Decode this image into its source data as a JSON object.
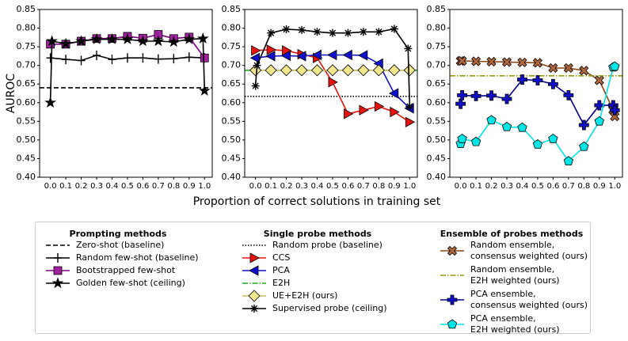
{
  "chart_data": [
    {
      "type": "line",
      "y_label": "AUROC",
      "legend_title": "Prompting methods",
      "xlim": [
        -0.07,
        1.05
      ],
      "ylim": [
        0.4,
        0.85
      ],
      "xticks": [
        {
          "value": 0,
          "label": "0.0"
        },
        {
          "value": 0.1,
          "label": "0.1"
        },
        {
          "value": 0.2,
          "label": "0.2"
        },
        {
          "value": 0.3,
          "label": "0.3"
        },
        {
          "value": 0.4,
          "label": "0.4"
        },
        {
          "value": 0.5,
          "label": "0.5"
        },
        {
          "value": 0.6,
          "label": "0.6"
        },
        {
          "value": 0.7,
          "label": "0.7"
        },
        {
          "value": 0.8,
          "label": "0.8"
        },
        {
          "value": 0.9,
          "label": "0.9"
        },
        {
          "value": 1,
          "label": "1.0"
        }
      ],
      "yticks": [
        {
          "value": 0.4,
          "label": "0.40"
        },
        0.45,
        {
          "value": 0.5,
          "label": "0.50"
        },
        0.55,
        {
          "value": 0.6,
          "label": "0.60"
        },
        0.65,
        {
          "value": 0.7,
          "label": "0.70"
        },
        0.75,
        {
          "value": 0.8,
          "label": "0.80"
        },
        0.85
      ],
      "series": [
        {
          "name": "Zero-shot (baseline)",
          "color": "#000000",
          "dash": "dashed",
          "value": 0.64
        },
        {
          "name": "Random few-shot (baseline)",
          "color": "#000000",
          "marker": "plus",
          "x": [
            0,
            0.1,
            0.2,
            0.3,
            0.4,
            0.5,
            0.6,
            0.7,
            0.8,
            0.9,
            1
          ],
          "values": [
            0.72,
            0.716,
            0.713,
            0.727,
            0.716,
            0.72,
            0.72,
            0.717,
            0.718,
            0.722,
            0.72
          ]
        },
        {
          "name": "Bootstrapped few-shot",
          "color": "#800080",
          "marker_color": "#a0209f",
          "marker": "square",
          "x": [
            0,
            0.1,
            0.2,
            0.3,
            0.4,
            0.5,
            0.6,
            0.7,
            0.8,
            0.9,
            1
          ],
          "values": [
            0.757,
            0.757,
            0.765,
            0.772,
            0.772,
            0.778,
            0.773,
            0.783,
            0.772,
            0.776,
            0.72
          ]
        },
        {
          "name": "Golden few-shot (ceiling)",
          "color": "#000000",
          "marker": "star",
          "x": [
            0,
            0.01,
            0.1,
            0.2,
            0.3,
            0.4,
            0.5,
            0.6,
            0.7,
            0.8,
            0.9,
            0.99,
            1
          ],
          "values": [
            0.6,
            0.765,
            0.758,
            0.765,
            0.77,
            0.77,
            0.77,
            0.765,
            0.765,
            0.763,
            0.77,
            0.772,
            0.632
          ]
        }
      ]
    },
    {
      "type": "line",
      "x_label": "Proportion of correct solutions in training set",
      "legend_title": "Single probe methods",
      "xlim": [
        -0.07,
        1.05
      ],
      "ylim": [
        0.4,
        0.85
      ],
      "xticks": [
        {
          "value": 0,
          "label": "0.0"
        },
        {
          "value": 0.1,
          "label": "0.1"
        },
        {
          "value": 0.2,
          "label": "0.2"
        },
        {
          "value": 0.3,
          "label": "0.3"
        },
        {
          "value": 0.4,
          "label": "0.4"
        },
        {
          "value": 0.5,
          "label": "0.5"
        },
        {
          "value": 0.6,
          "label": "0.6"
        },
        {
          "value": 0.7,
          "label": "0.7"
        },
        {
          "value": 0.8,
          "label": "0.8"
        },
        {
          "value": 0.9,
          "label": "0.9"
        },
        {
          "value": 1,
          "label": "1.0"
        }
      ],
      "yticks": [
        {
          "value": 0.4,
          "label": "0.40"
        },
        0.45,
        {
          "value": 0.5,
          "label": "0.50"
        },
        0.55,
        {
          "value": 0.6,
          "label": "0.60"
        },
        0.65,
        {
          "value": 0.7,
          "label": "0.70"
        },
        0.75,
        {
          "value": 0.8,
          "label": "0.80"
        },
        0.85
      ],
      "series": [
        {
          "name": "Random probe (baseline)",
          "color": "#000000",
          "dash": "dotted",
          "value": 0.617
        },
        {
          "name": "CCS",
          "color": "#e8120c",
          "marker": "tri-right",
          "x": [
            0,
            0.1,
            0.2,
            0.3,
            0.4,
            0.5,
            0.6,
            0.7,
            0.8,
            0.9,
            1
          ],
          "values": [
            0.74,
            0.742,
            0.74,
            0.73,
            0.72,
            0.655,
            0.57,
            0.58,
            0.59,
            0.575,
            0.548
          ]
        },
        {
          "name": "PCA",
          "color": "#1010cc",
          "marker": "tri-left",
          "x": [
            0,
            0.1,
            0.2,
            0.3,
            0.4,
            0.5,
            0.6,
            0.7,
            0.8,
            0.9,
            1
          ],
          "values": [
            0.72,
            0.725,
            0.726,
            0.725,
            0.728,
            0.728,
            0.728,
            0.727,
            0.705,
            0.625,
            0.585
          ]
        },
        {
          "name": "E2H",
          "color": "#22aa22",
          "dash": "dashdot",
          "value": 0.687
        },
        {
          "name": "UE+E2H (ours)",
          "color": "#c8be5a",
          "marker_color": "#f0e68c",
          "marker": "diamond",
          "x": [
            0,
            0.1,
            0.2,
            0.3,
            0.4,
            0.5,
            0.6,
            0.7,
            0.8,
            0.9,
            1
          ],
          "values": [
            0.687,
            0.687,
            0.687,
            0.687,
            0.687,
            0.687,
            0.687,
            0.687,
            0.687,
            0.687,
            0.687
          ]
        },
        {
          "name": "Supervised probe (ceiling)",
          "color": "#000000",
          "marker": "asterisk",
          "x": [
            0,
            0.01,
            0.1,
            0.2,
            0.3,
            0.4,
            0.5,
            0.6,
            0.7,
            0.8,
            0.9,
            0.99,
            1
          ],
          "values": [
            0.645,
            0.7,
            0.787,
            0.797,
            0.795,
            0.79,
            0.787,
            0.787,
            0.79,
            0.79,
            0.798,
            0.745,
            0.59
          ]
        }
      ]
    },
    {
      "type": "line",
      "legend_title": "Ensemble of probes methods",
      "xlim": [
        -0.07,
        1.05
      ],
      "ylim": [
        0.4,
        0.85
      ],
      "xticks": [
        {
          "value": 0,
          "label": "0.0"
        },
        {
          "value": 0.1,
          "label": "0.1"
        },
        {
          "value": 0.2,
          "label": "0.2"
        },
        {
          "value": 0.3,
          "label": "0.3"
        },
        {
          "value": 0.4,
          "label": "0.4"
        },
        {
          "value": 0.5,
          "label": "0.5"
        },
        {
          "value": 0.6,
          "label": "0.6"
        },
        {
          "value": 0.7,
          "label": "0.7"
        },
        {
          "value": 0.8,
          "label": "0.8"
        },
        {
          "value": 0.9,
          "label": "0.9"
        },
        {
          "value": 1,
          "label": "1.0"
        }
      ],
      "yticks": [
        {
          "value": 0.4,
          "label": "0.40"
        },
        0.45,
        {
          "value": 0.5,
          "label": "0.50"
        },
        0.55,
        {
          "value": 0.6,
          "label": "0.60"
        },
        0.65,
        {
          "value": 0.7,
          "label": "0.70"
        },
        0.75,
        {
          "value": 0.8,
          "label": "0.80"
        },
        0.85
      ],
      "series": [
        {
          "name": "Random ensemble,\nconsensus weighted (ours)",
          "color": "#8b4513",
          "marker_color": "#b0683a",
          "marker": "xfill",
          "x": [
            0,
            0.01,
            0.1,
            0.2,
            0.3,
            0.4,
            0.5,
            0.6,
            0.7,
            0.8,
            0.9,
            0.99,
            1
          ],
          "values": [
            0.712,
            0.712,
            0.711,
            0.71,
            0.709,
            0.708,
            0.707,
            0.693,
            0.693,
            0.686,
            0.66,
            0.58,
            0.563
          ]
        },
        {
          "name": "Random ensemble,\nE2H weighted (ours)",
          "color": "#9a9a10",
          "dash": "dashdot",
          "value": 0.672
        },
        {
          "name": "PCA ensemble,\nconsensus weighted (ours)",
          "color": "#00008b",
          "marker_color": "#1010cc",
          "marker": "pfill",
          "x": [
            0,
            0.01,
            0.1,
            0.2,
            0.3,
            0.4,
            0.5,
            0.6,
            0.7,
            0.8,
            0.9,
            0.99,
            1
          ],
          "values": [
            0.597,
            0.62,
            0.618,
            0.619,
            0.61,
            0.662,
            0.66,
            0.65,
            0.62,
            0.54,
            0.593,
            0.593,
            0.58
          ]
        },
        {
          "name": "PCA ensemble,\nE2H weighted (ours)",
          "color": "#00e5e5",
          "marker_color": "#00e5e5",
          "marker": "pentagon",
          "x": [
            0,
            0.01,
            0.1,
            0.2,
            0.3,
            0.4,
            0.5,
            0.6,
            0.7,
            0.8,
            0.9,
            0.99,
            1
          ],
          "values": [
            0.49,
            0.503,
            0.495,
            0.553,
            0.535,
            0.533,
            0.488,
            0.503,
            0.443,
            0.482,
            0.55,
            0.695,
            0.697
          ]
        }
      ]
    }
  ]
}
